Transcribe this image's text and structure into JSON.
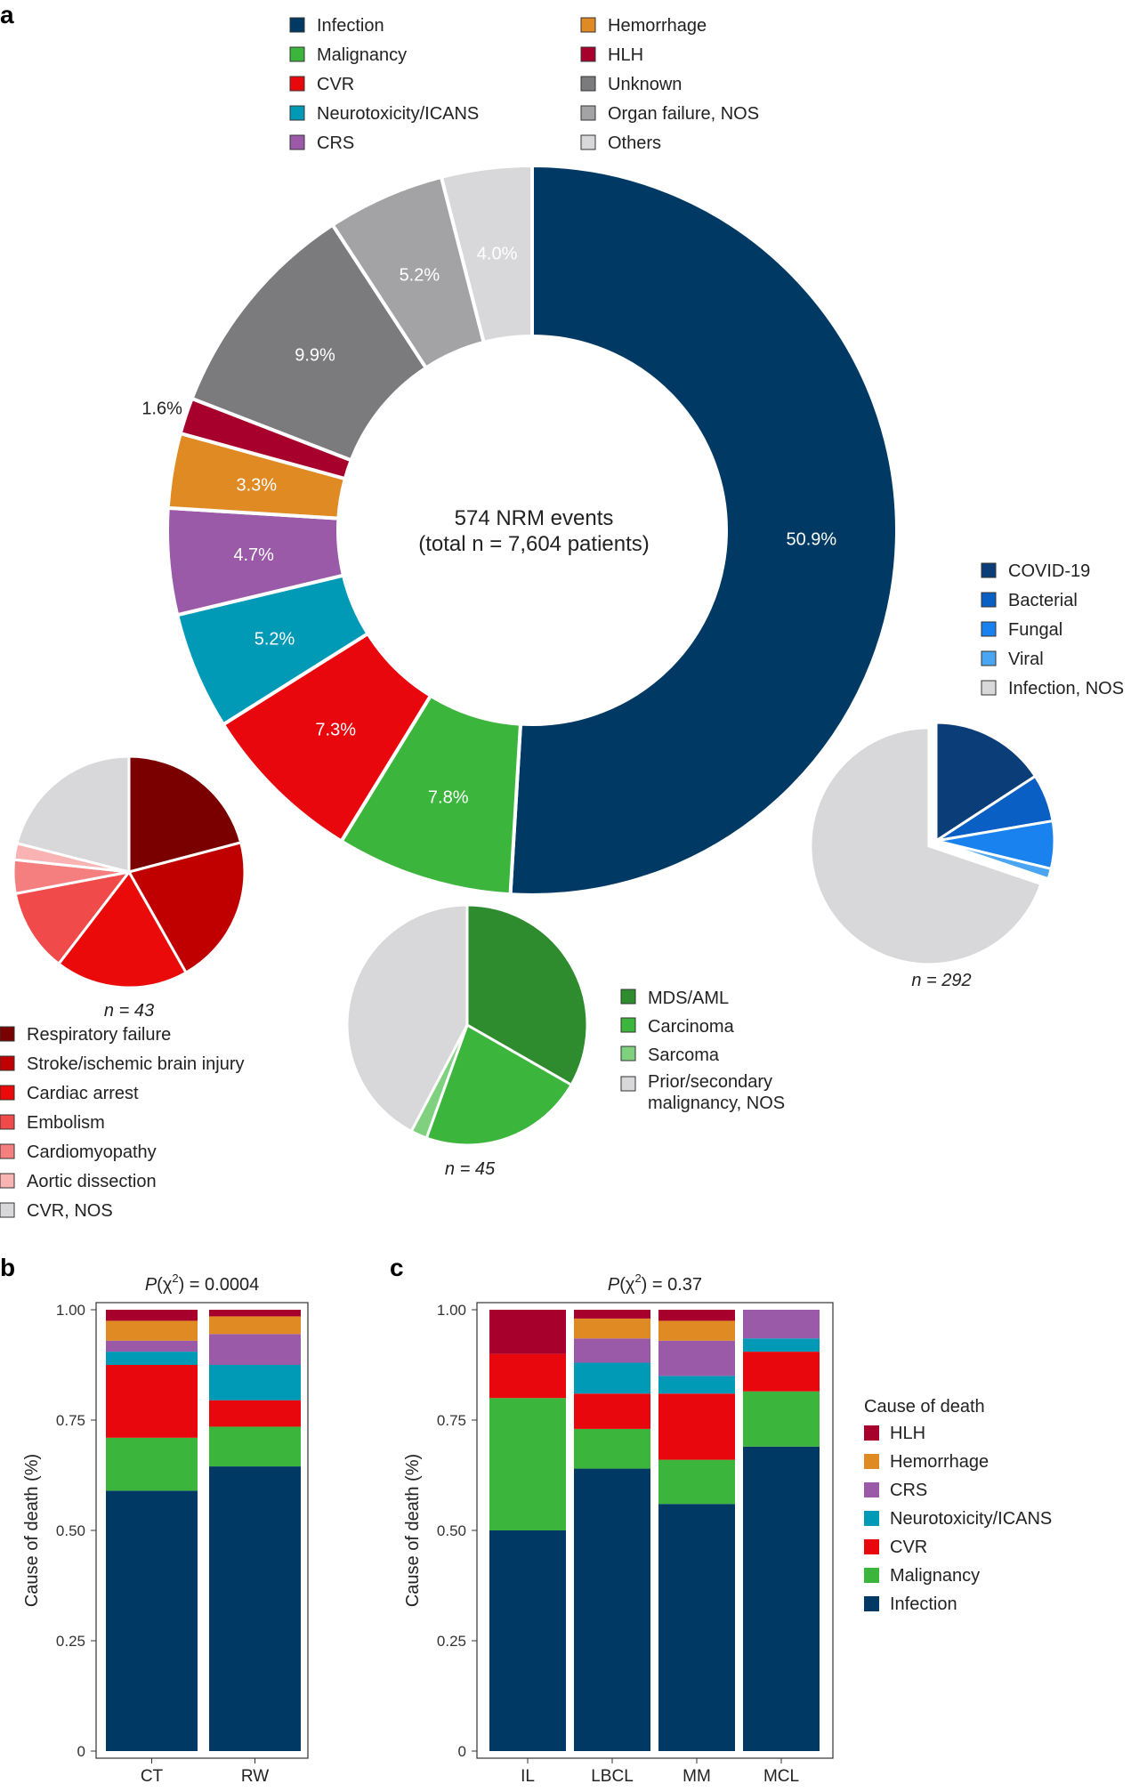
{
  "panels": {
    "a": "a",
    "b": "b",
    "c": "c"
  },
  "colors": {
    "Infection": "#003a64",
    "Malignancy": "#3cb53c",
    "CVR": "#e8070d",
    "Neurotoxicity/ICANS": "#0099b6",
    "CRS": "#9a5aa7",
    "Hemorrhage": "#e08a24",
    "HLH": "#a8002c",
    "Unknown": "#7b7b7d",
    "Organ failure, NOS": "#a3a3a5",
    "Others": "#d8d8da"
  },
  "chart_data": [
    {
      "type": "pie",
      "variant": "donut",
      "center_text": [
        "574 NRM events",
        "(total n = 7,604 patients)"
      ],
      "legend": [
        "Infection",
        "Malignancy",
        "CVR",
        "Neurotoxicity/ICANS",
        "CRS",
        "Hemorrhage",
        "HLH",
        "Unknown",
        "Organ failure, NOS",
        "Others"
      ],
      "slices": [
        {
          "name": "Infection",
          "value": 50.9,
          "label": "50.9%"
        },
        {
          "name": "Malignancy",
          "value": 7.8,
          "label": "7.8%"
        },
        {
          "name": "CVR",
          "value": 7.3,
          "label": "7.3%"
        },
        {
          "name": "Neurotoxicity/ICANS",
          "value": 5.2,
          "label": "5.2%"
        },
        {
          "name": "CRS",
          "value": 4.7,
          "label": "4.7%"
        },
        {
          "name": "Hemorrhage",
          "value": 3.3,
          "label": "3.3%"
        },
        {
          "name": "HLH",
          "value": 1.6,
          "label": "1.6%"
        },
        {
          "name": "Unknown",
          "value": 9.9,
          "label": "9.9%"
        },
        {
          "name": "Organ failure, NOS",
          "value": 5.2,
          "label": "5.2%"
        },
        {
          "name": "Others",
          "value": 4.0,
          "label": "4.0%"
        }
      ]
    },
    {
      "type": "pie",
      "group": "CVR",
      "n_label": "n = 43",
      "slices": [
        {
          "name": "Respiratory failure",
          "value": 20.9,
          "color": "#7a0000"
        },
        {
          "name": "Stroke/ischemic brain injury",
          "value": 20.9,
          "color": "#c00000"
        },
        {
          "name": "Cardiac arrest",
          "value": 18.6,
          "color": "#ea0a0a"
        },
        {
          "name": "Embolism",
          "value": 11.6,
          "color": "#f04a4a"
        },
        {
          "name": "Cardiomyopathy",
          "value": 4.7,
          "color": "#f57f7f"
        },
        {
          "name": "Aortic dissection",
          "value": 2.3,
          "color": "#fab3b3"
        },
        {
          "name": "CVR, NOS",
          "value": 21.0,
          "color": "#d8d8da"
        }
      ]
    },
    {
      "type": "pie",
      "group": "Malignancy",
      "n_label": "n = 45",
      "slices": [
        {
          "name": "MDS/AML",
          "value": 33.3,
          "color": "#2e8b2e"
        },
        {
          "name": "Carcinoma",
          "value": 22.2,
          "color": "#3cb53c"
        },
        {
          "name": "Sarcoma",
          "value": 2.2,
          "color": "#7fd07f"
        },
        {
          "name": "Prior/secondary malignancy, NOS",
          "value": 42.3,
          "color": "#d8d8da"
        }
      ],
      "legend_lines": [
        "MDS/AML",
        "Carcinoma",
        "Sarcoma",
        "Prior/secondary",
        "malignancy, NOS"
      ]
    },
    {
      "type": "pie",
      "group": "Infection",
      "n_label": "n = 292",
      "slices": [
        {
          "name": "COVID-19",
          "value": 15.8,
          "color": "#0b3d78"
        },
        {
          "name": "Bacterial",
          "value": 6.5,
          "color": "#0a5fc4"
        },
        {
          "name": "Fungal",
          "value": 6.5,
          "color": "#1a82ee"
        },
        {
          "name": "Viral",
          "value": 1.4,
          "color": "#4aa5f2"
        },
        {
          "name": "Infection, NOS",
          "value": 69.8,
          "color": "#d8d8da"
        }
      ]
    },
    {
      "type": "bar",
      "stacked": true,
      "title_prefix": "P(χ",
      "title_sup": "2",
      "title_suffix": ") = 0.0004",
      "ylabel": "Cause of death (%)",
      "ylim": [
        0,
        1
      ],
      "yticks": [
        {
          "v": 0,
          "t": "0"
        },
        {
          "v": 0.25,
          "t": "0.25"
        },
        {
          "v": 0.5,
          "t": "0.50"
        },
        {
          "v": 0.75,
          "t": "0.75"
        },
        {
          "v": 1,
          "t": "1.00"
        }
      ],
      "categories": [
        "CT",
        "RW"
      ],
      "series": [
        {
          "name": "Infection",
          "values": [
            0.59,
            0.645
          ]
        },
        {
          "name": "Malignancy",
          "values": [
            0.12,
            0.09
          ]
        },
        {
          "name": "CVR",
          "values": [
            0.165,
            0.06
          ]
        },
        {
          "name": "Neurotoxicity/ICANS",
          "values": [
            0.03,
            0.08
          ]
        },
        {
          "name": "CRS",
          "values": [
            0.025,
            0.07
          ]
        },
        {
          "name": "Hemorrhage",
          "values": [
            0.045,
            0.04
          ]
        },
        {
          "name": "HLH",
          "values": [
            0.025,
            0.015
          ]
        }
      ]
    },
    {
      "type": "bar",
      "stacked": true,
      "title_prefix": "P(χ",
      "title_sup": "2",
      "title_suffix": ") = 0.37",
      "ylabel": "Cause of death (%)",
      "ylim": [
        0,
        1
      ],
      "yticks": [
        {
          "v": 0,
          "t": "0"
        },
        {
          "v": 0.25,
          "t": "0.25"
        },
        {
          "v": 0.5,
          "t": "0.50"
        },
        {
          "v": 0.75,
          "t": "0.75"
        },
        {
          "v": 1,
          "t": "1.00"
        }
      ],
      "categories": [
        "IL",
        "LBCL",
        "MM",
        "MCL"
      ],
      "series": [
        {
          "name": "Infection",
          "values": [
            0.5,
            0.64,
            0.56,
            0.69
          ]
        },
        {
          "name": "Malignancy",
          "values": [
            0.3,
            0.09,
            0.1,
            0.125
          ]
        },
        {
          "name": "CVR",
          "values": [
            0.1,
            0.08,
            0.15,
            0.09
          ]
        },
        {
          "name": "Neurotoxicity/ICANS",
          "values": [
            0,
            0.07,
            0.04,
            0.03
          ]
        },
        {
          "name": "CRS",
          "values": [
            0,
            0.055,
            0.08,
            0.065
          ]
        },
        {
          "name": "Hemorrhage",
          "values": [
            0,
            0.045,
            0.045,
            0
          ]
        },
        {
          "name": "HLH",
          "values": [
            0.1,
            0.02,
            0.025,
            0
          ]
        }
      ],
      "legend_title": "Cause of death",
      "legend": [
        "HLH",
        "Hemorrhage",
        "CRS",
        "Neurotoxicity/ICANS",
        "CVR",
        "Malignancy",
        "Infection"
      ]
    }
  ]
}
